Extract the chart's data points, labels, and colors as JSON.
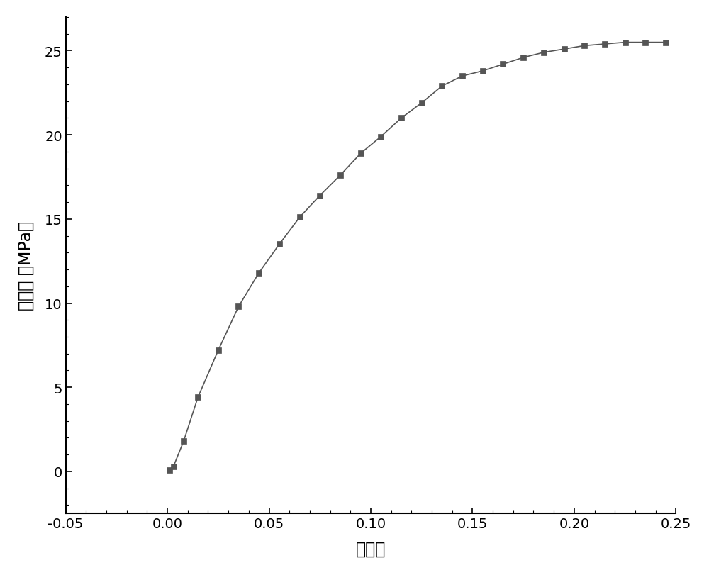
{
  "x": [
    0.001,
    0.003,
    0.008,
    0.015,
    0.025,
    0.035,
    0.045,
    0.055,
    0.065,
    0.075,
    0.085,
    0.095,
    0.105,
    0.115,
    0.125,
    0.135,
    0.145,
    0.155,
    0.165,
    0.175,
    0.185,
    0.195,
    0.205,
    0.215,
    0.225,
    0.235,
    0.245
  ],
  "y": [
    0.1,
    0.3,
    1.8,
    4.4,
    7.2,
    9.8,
    11.8,
    13.5,
    15.1,
    16.4,
    17.6,
    18.9,
    19.9,
    21.0,
    21.9,
    22.9,
    23.5,
    23.8,
    24.2,
    24.6,
    24.9,
    25.1,
    25.3,
    25.4,
    25.5,
    25.5,
    25.5
  ],
  "xlim": [
    -0.05,
    0.25
  ],
  "ylim": [
    -2.5,
    27
  ],
  "xticks": [
    -0.05,
    0.0,
    0.05,
    0.1,
    0.15,
    0.2,
    0.25
  ],
  "yticks": [
    0,
    5,
    10,
    15,
    20,
    25
  ],
  "xlabel": "真应变",
  "ylabel": "真应力 （MPa）",
  "line_color": "#555555",
  "marker_color": "#555555",
  "marker": "s",
  "marker_size": 6,
  "line_width": 1.2,
  "bg_color": "#ffffff",
  "spine_color": "#000000",
  "tick_color": "#000000",
  "font_size_label": 17,
  "font_size_tick": 14
}
